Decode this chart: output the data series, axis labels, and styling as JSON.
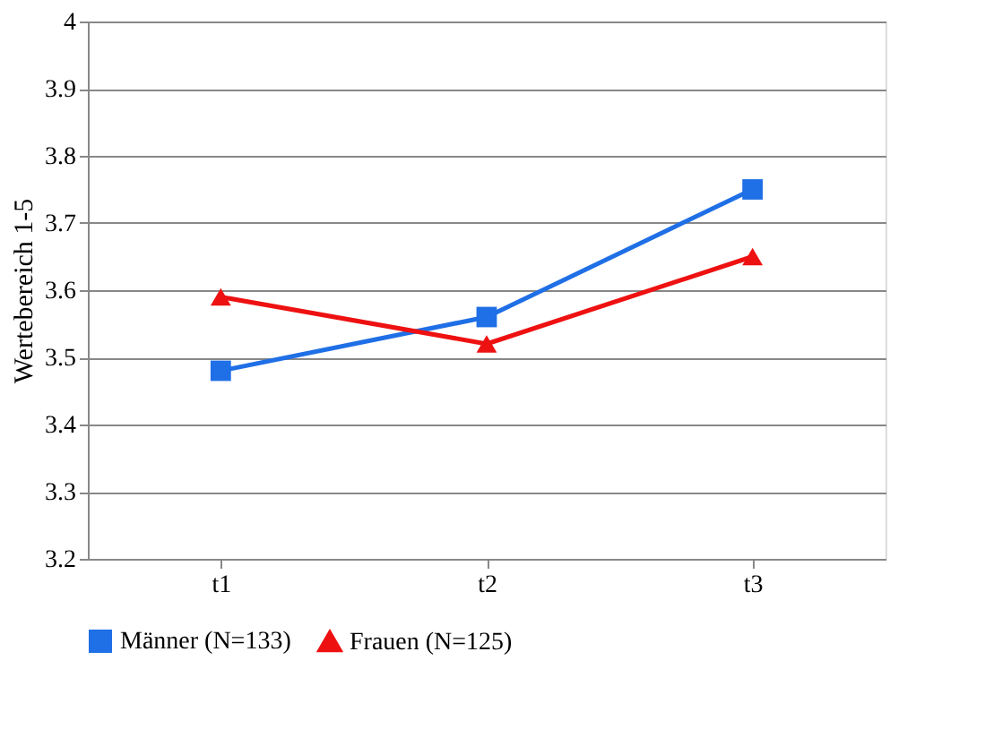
{
  "chart_data": {
    "type": "line",
    "ylabel": "Wertebereich 1-5",
    "categories": [
      "t1",
      "t2",
      "t3"
    ],
    "series": [
      {
        "name": "Männer (N=133)",
        "color": "#1f6fe6",
        "marker": "square",
        "values": [
          3.48,
          3.56,
          3.75
        ]
      },
      {
        "name": "Frauen (N=125)",
        "color": "#ee1111",
        "marker": "triangle",
        "values": [
          3.59,
          3.52,
          3.65
        ]
      }
    ],
    "ylim": [
      3.2,
      4
    ],
    "yticks": [
      3.2,
      3.3,
      3.4,
      3.5,
      3.6,
      3.7,
      3.8,
      3.9,
      4
    ],
    "grid": "y",
    "legend": "bottom",
    "line_style": "solid"
  }
}
